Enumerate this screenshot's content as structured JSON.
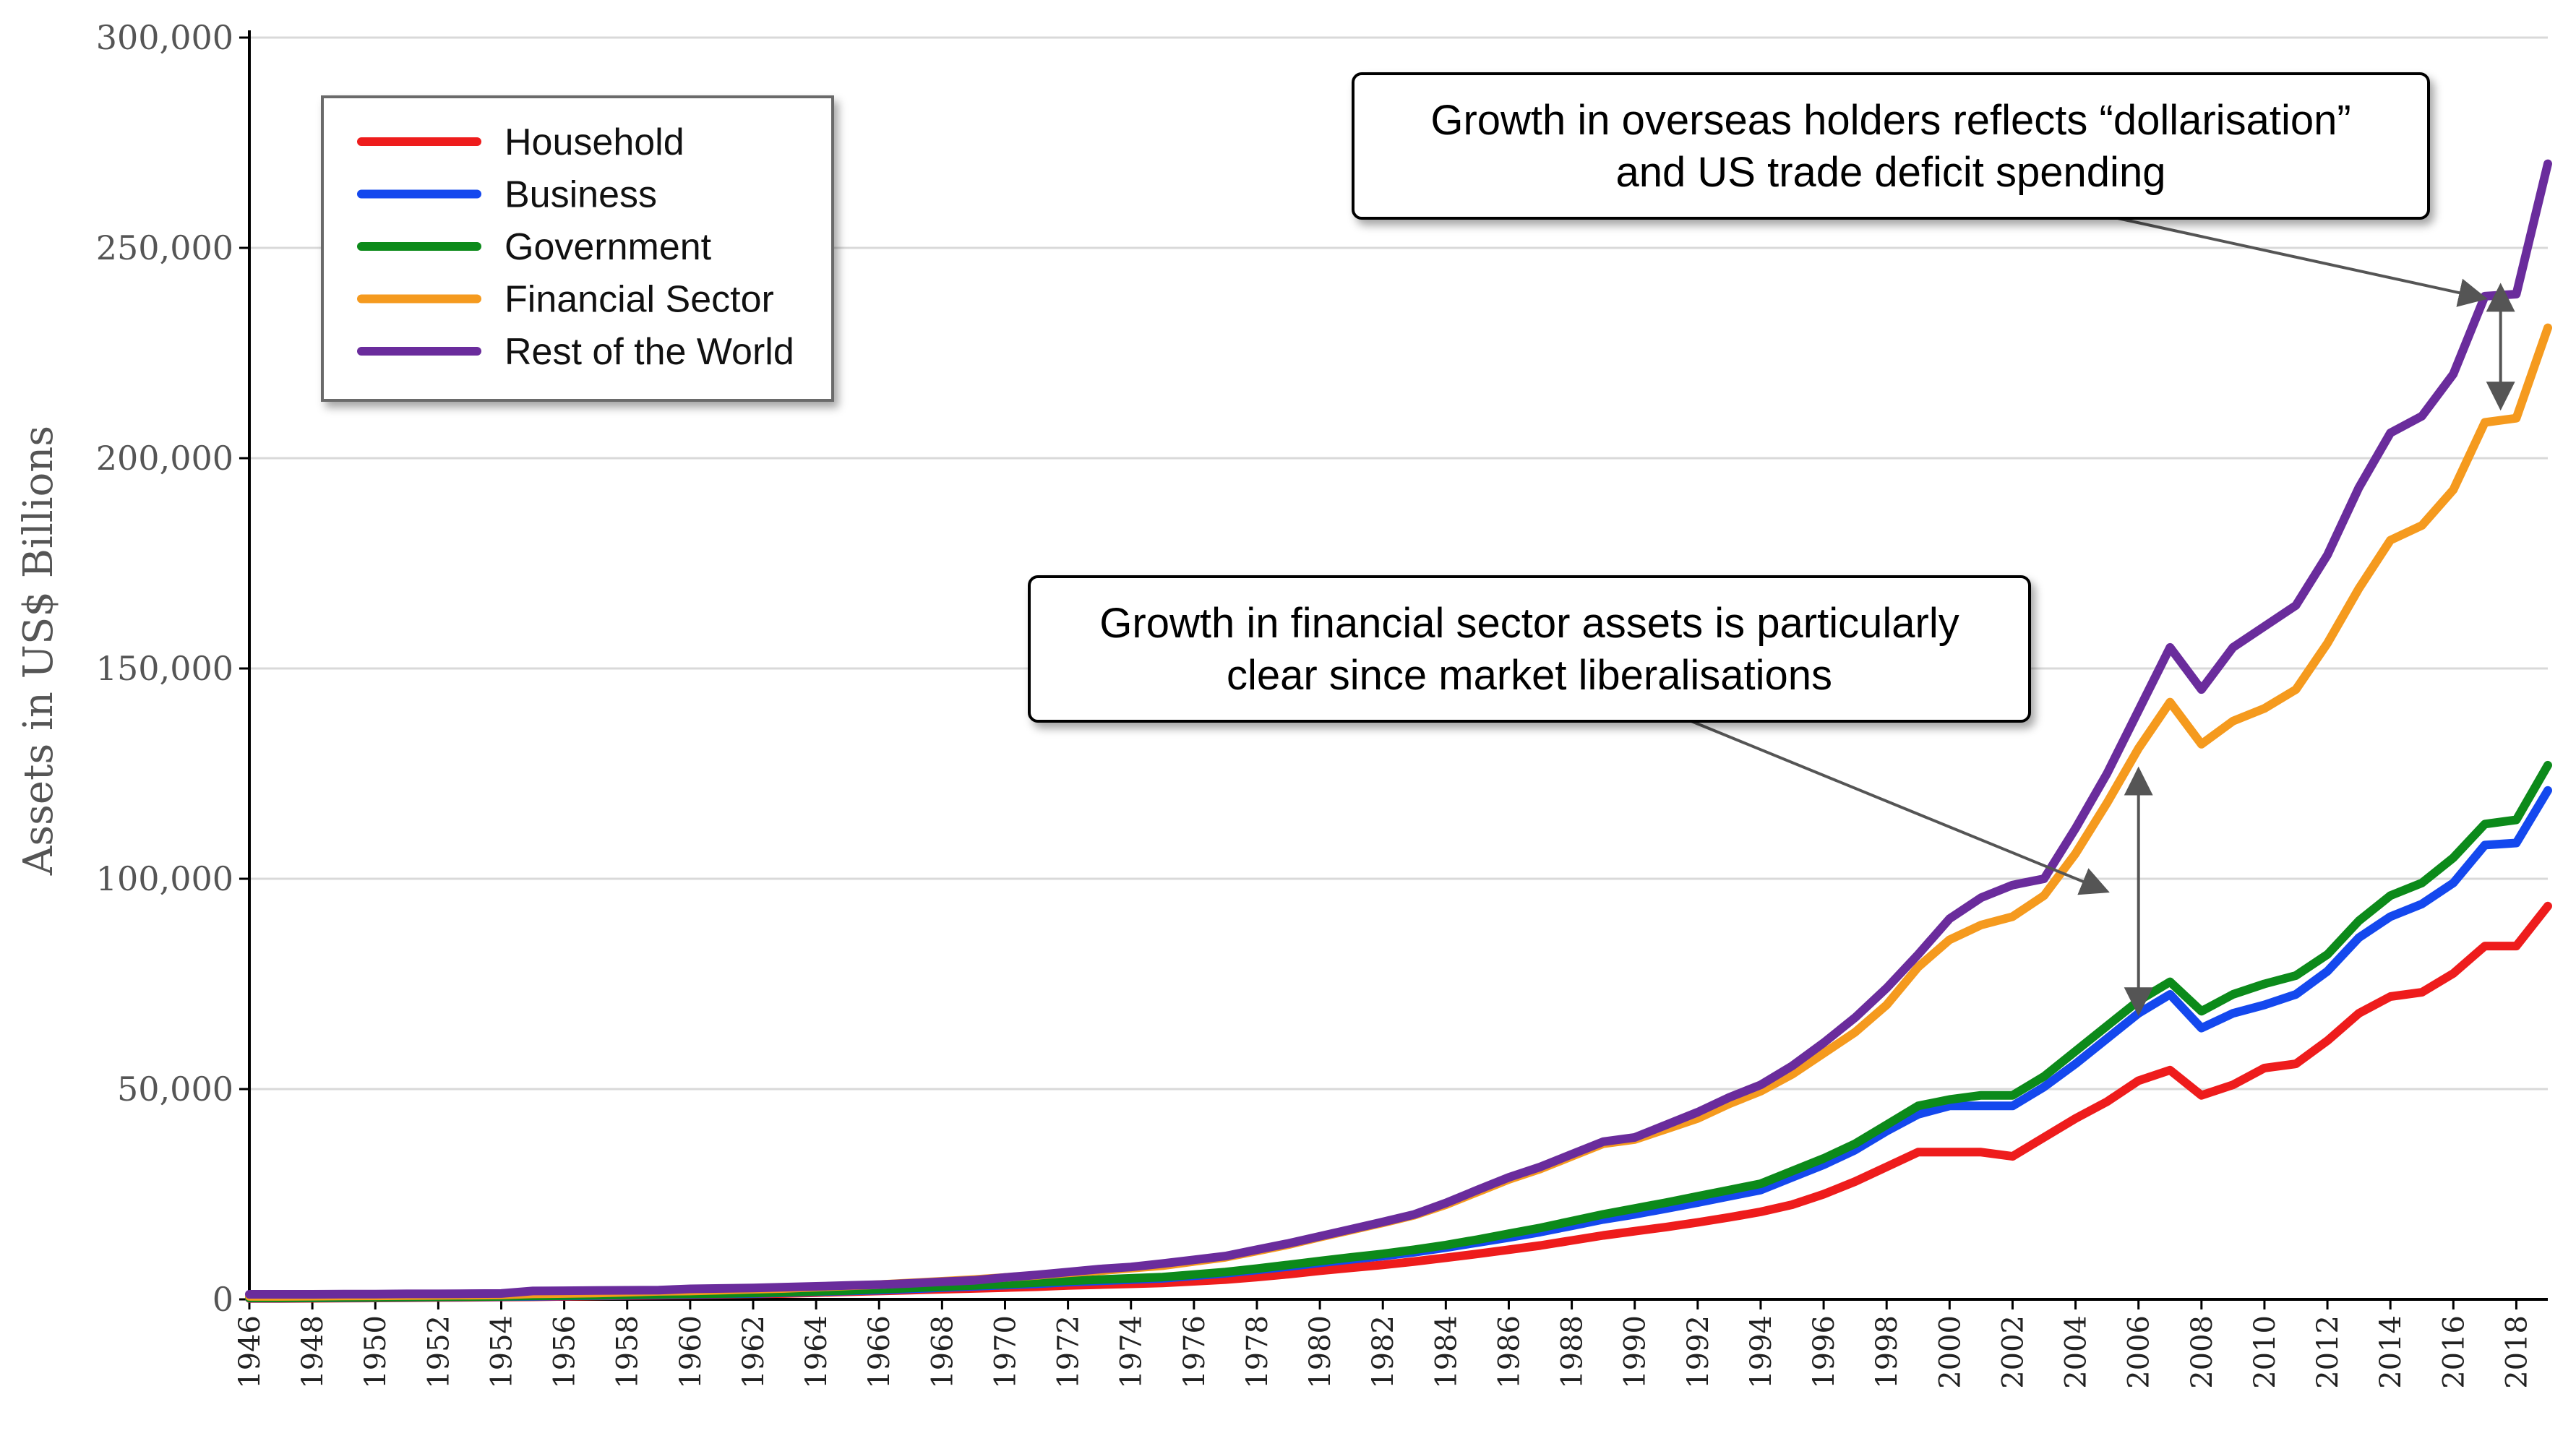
{
  "chart_data": {
    "type": "line",
    "title": "",
    "xlabel": "",
    "ylabel": "Assets in US$ Billions",
    "ylim": [
      0,
      300000
    ],
    "xlim": [
      1946,
      2019
    ],
    "yticks": [
      0,
      50000,
      100000,
      150000,
      200000,
      250000,
      300000
    ],
    "ytick_labels": [
      "0",
      "50,000",
      "100,000",
      "150,000",
      "200,000",
      "250,000",
      "300,000"
    ],
    "xtick_labels": [
      "1946",
      "1948",
      "1950",
      "1952",
      "1954",
      "1956",
      "1958",
      "1960",
      "1962",
      "1964",
      "1966",
      "1968",
      "1970",
      "1972",
      "1974",
      "1976",
      "1978",
      "1980",
      "1982",
      "1984",
      "1986",
      "1988",
      "1990",
      "1992",
      "1994",
      "1996",
      "1998",
      "2000",
      "2002",
      "2004",
      "2006",
      "2008",
      "2010",
      "2012",
      "2014",
      "2016",
      "2018"
    ],
    "grid": true,
    "legend_position": "top-left",
    "x": [
      1946,
      1947,
      1948,
      1949,
      1950,
      1951,
      1952,
      1953,
      1954,
      1955,
      1956,
      1957,
      1958,
      1959,
      1960,
      1961,
      1962,
      1963,
      1964,
      1965,
      1966,
      1967,
      1968,
      1969,
      1970,
      1971,
      1972,
      1973,
      1974,
      1975,
      1976,
      1977,
      1978,
      1979,
      1980,
      1981,
      1982,
      1983,
      1984,
      1985,
      1986,
      1987,
      1988,
      1989,
      1990,
      1991,
      1992,
      1993,
      1994,
      1995,
      1996,
      1997,
      1998,
      1999,
      2000,
      2001,
      2002,
      2003,
      2004,
      2005,
      2006,
      2007,
      2008,
      2009,
      2010,
      2011,
      2012,
      2013,
      2014,
      2015,
      2016,
      2017,
      2018,
      2019
    ],
    "series": [
      {
        "name": "Household",
        "color": "#ee1c1c",
        "values": [
          200,
          200,
          250,
          300,
          350,
          400,
          450,
          500,
          550,
          600,
          700,
          800,
          900,
          1000,
          1100,
          1200,
          1300,
          1400,
          1600,
          1800,
          2000,
          2200,
          2400,
          2600,
          2800,
          3000,
          3300,
          3500,
          3700,
          3900,
          4300,
          4700,
          5300,
          6000,
          6800,
          7500,
          8200,
          9000,
          9900,
          10800,
          11800,
          12800,
          14000,
          15200,
          16200,
          17200,
          18300,
          19500,
          20800,
          22500,
          25000,
          28000,
          31500,
          35000,
          35000,
          35000,
          34000,
          38500,
          43000,
          47000,
          52000,
          54500,
          48500,
          51000,
          55000,
          56000,
          61500,
          68000,
          72000,
          73000,
          77500,
          84000,
          84000,
          93500
        ]
      },
      {
        "name": "Business",
        "color": "#1448ee",
        "values": [
          300,
          300,
          350,
          400,
          450,
          500,
          550,
          600,
          650,
          700,
          800,
          900,
          1000,
          1100,
          1200,
          1300,
          1400,
          1600,
          1800,
          2000,
          2200,
          2500,
          2800,
          3100,
          3400,
          3700,
          4100,
          4400,
          4700,
          5000,
          5600,
          6200,
          7000,
          7800,
          8700,
          9500,
          10300,
          11200,
          12300,
          13500,
          14700,
          16000,
          17500,
          19000,
          20200,
          21600,
          23000,
          24500,
          26000,
          29000,
          32000,
          35500,
          40000,
          44000,
          46000,
          46000,
          46000,
          50500,
          56000,
          62000,
          68000,
          72500,
          64500,
          68000,
          70000,
          72500,
          78000,
          86000,
          91000,
          94000,
          99000,
          108000,
          108500,
          121000
        ]
      },
      {
        "name": "Government",
        "color": "#0c8a1a",
        "values": [
          350,
          350,
          400,
          450,
          500,
          550,
          600,
          650,
          700,
          800,
          900,
          1000,
          1100,
          1200,
          1300,
          1400,
          1500,
          1700,
          1900,
          2100,
          2400,
          2700,
          3000,
          3300,
          3600,
          4000,
          4400,
          4700,
          5000,
          5300,
          5900,
          6500,
          7300,
          8200,
          9100,
          10000,
          10800,
          11800,
          12900,
          14200,
          15600,
          17000,
          18600,
          20200,
          21600,
          23000,
          24500,
          26000,
          27500,
          30500,
          33500,
          37000,
          41500,
          46000,
          47500,
          48500,
          48500,
          53000,
          59000,
          65000,
          71000,
          75500,
          68500,
          72500,
          75000,
          77000,
          82000,
          90000,
          96000,
          99000,
          105000,
          113000,
          114000,
          127000
        ]
      },
      {
        "name": "Financial Sector",
        "color": "#f59a1e",
        "values": [
          700,
          700,
          750,
          800,
          850,
          900,
          950,
          1000,
          1050,
          1300,
          1400,
          1500,
          1700,
          1900,
          2000,
          2200,
          2400,
          2600,
          2900,
          3200,
          3500,
          3900,
          4300,
          4700,
          5200,
          5700,
          6300,
          6800,
          7400,
          8000,
          9000,
          10000,
          11500,
          13000,
          14800,
          16500,
          18200,
          20000,
          22500,
          25500,
          28500,
          31000,
          34000,
          37000,
          38000,
          40500,
          43000,
          46500,
          49500,
          53500,
          58500,
          63500,
          70000,
          79000,
          85500,
          89000,
          91000,
          96000,
          106000,
          118000,
          131000,
          142000,
          132000,
          137500,
          140500,
          145000,
          156000,
          169000,
          180500,
          184000,
          192500,
          208500,
          209500,
          231000
        ]
      },
      {
        "name": "Rest of the World",
        "color": "#6a2c9c",
        "values": [
          1200,
          1200,
          1200,
          1250,
          1250,
          1300,
          1300,
          1350,
          1400,
          2000,
          2050,
          2100,
          2150,
          2200,
          2500,
          2600,
          2700,
          2900,
          3100,
          3300,
          3500,
          3800,
          4200,
          4500,
          5200,
          5800,
          6500,
          7200,
          7700,
          8500,
          9400,
          10300,
          11800,
          13300,
          15000,
          16700,
          18400,
          20200,
          22900,
          26000,
          29000,
          31500,
          34500,
          37500,
          38500,
          41500,
          44500,
          48000,
          51000,
          55500,
          61000,
          67000,
          74000,
          82000,
          90500,
          95500,
          98500,
          100000,
          112000,
          125000,
          140000,
          155000,
          145000,
          155000,
          160000,
          165000,
          177000,
          193000,
          206000,
          210000,
          220000,
          238500,
          239000,
          270000
        ]
      }
    ],
    "annotations": [
      {
        "lines": [
          "Growth in overseas holders reflects “dollarisation”",
          "and US trade deficit spending"
        ],
        "target_year": 2017,
        "target_value": 238000
      },
      {
        "lines": [
          "Growth in financial sector assets is particularly",
          "clear since market liberalisations"
        ],
        "target_year": 2005,
        "target_value": 97000
      }
    ],
    "gap_markers": [
      {
        "x": 2017.5,
        "from": 212000,
        "to": 241000
      },
      {
        "x": 2006,
        "from": 68000,
        "to": 126000
      }
    ]
  }
}
